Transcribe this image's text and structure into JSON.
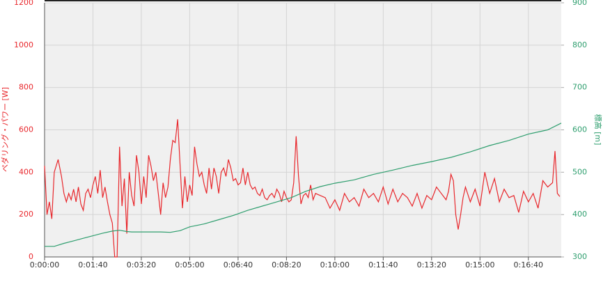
{
  "chart_data": {
    "type": "line",
    "ylabel": "ペダリング・パワー [W]",
    "y2label": "標高 [m]",
    "xlim": [
      0,
      1068
    ],
    "ylim": [
      0,
      1200
    ],
    "y2lim": [
      300,
      900
    ],
    "xticks": [
      {
        "value": 0,
        "label": "0:00:00"
      },
      {
        "value": 100,
        "label": "0:01:40"
      },
      {
        "value": 200,
        "label": "0:03:20"
      },
      {
        "value": 300,
        "label": "0:05:00"
      },
      {
        "value": 400,
        "label": "0:06:40"
      },
      {
        "value": 500,
        "label": "0:08:20"
      },
      {
        "value": 600,
        "label": "0:10:00"
      },
      {
        "value": 700,
        "label": "0:11:40"
      },
      {
        "value": 800,
        "label": "0:13:20"
      },
      {
        "value": 900,
        "label": "0:15:00"
      },
      {
        "value": 1000,
        "label": "0:16:40"
      }
    ],
    "yticks": [
      0,
      200,
      400,
      600,
      800,
      1000,
      1200
    ],
    "y2ticks": [
      300,
      400,
      500,
      600,
      700,
      800,
      900
    ],
    "grid": true,
    "series": [
      {
        "color": "#e8262b",
        "x": [
          0,
          5,
          10,
          15,
          20,
          28,
          35,
          40,
          45,
          50,
          55,
          60,
          65,
          70,
          75,
          80,
          85,
          90,
          95,
          100,
          105,
          110,
          115,
          120,
          125,
          130,
          135,
          140,
          145,
          150,
          155,
          160,
          165,
          170,
          175,
          180,
          185,
          190,
          195,
          200,
          205,
          210,
          215,
          220,
          225,
          230,
          235,
          240,
          245,
          250,
          255,
          260,
          265,
          270,
          275,
          280,
          285,
          290,
          295,
          300,
          305,
          310,
          315,
          320,
          325,
          330,
          335,
          340,
          345,
          350,
          355,
          360,
          365,
          370,
          375,
          380,
          385,
          390,
          395,
          400,
          405,
          410,
          415,
          420,
          425,
          430,
          435,
          440,
          445,
          450,
          455,
          460,
          465,
          470,
          475,
          480,
          485,
          490,
          495,
          500,
          505,
          510,
          515,
          520,
          525,
          530,
          535,
          540,
          545,
          550,
          555,
          560,
          570,
          580,
          590,
          600,
          610,
          620,
          630,
          640,
          650,
          660,
          670,
          680,
          690,
          700,
          710,
          720,
          730,
          740,
          750,
          760,
          770,
          780,
          790,
          800,
          810,
          820,
          830,
          835,
          840,
          845,
          850,
          855,
          860,
          865,
          870,
          880,
          890,
          900,
          910,
          920,
          930,
          940,
          950,
          960,
          970,
          980,
          990,
          1000,
          1010,
          1020,
          1030,
          1040,
          1050,
          1055,
          1060,
          1065
        ],
        "values": [
          430,
          200,
          260,
          180,
          400,
          460,
          380,
          300,
          260,
          300,
          270,
          320,
          260,
          330,
          250,
          220,
          300,
          320,
          280,
          340,
          380,
          300,
          410,
          280,
          330,
          260,
          200,
          160,
          0,
          0,
          520,
          240,
          370,
          110,
          400,
          290,
          240,
          480,
          400,
          250,
          380,
          280,
          480,
          430,
          360,
          400,
          300,
          200,
          350,
          280,
          330,
          460,
          550,
          540,
          650,
          440,
          230,
          380,
          260,
          340,
          290,
          520,
          440,
          380,
          400,
          340,
          300,
          420,
          320,
          420,
          380,
          300,
          400,
          420,
          380,
          460,
          420,
          360,
          370,
          340,
          350,
          420,
          340,
          400,
          340,
          320,
          330,
          300,
          290,
          320,
          280,
          270,
          290,
          300,
          280,
          320,
          300,
          260,
          310,
          280,
          260,
          270,
          350,
          570,
          380,
          250,
          290,
          300,
          280,
          340,
          270,
          300,
          290,
          280,
          230,
          270,
          220,
          300,
          260,
          280,
          240,
          320,
          280,
          300,
          260,
          330,
          250,
          320,
          260,
          300,
          280,
          240,
          300,
          230,
          290,
          270,
          330,
          300,
          270,
          310,
          390,
          360,
          200,
          130,
          200,
          280,
          330,
          260,
          320,
          240,
          400,
          300,
          370,
          260,
          320,
          280,
          290,
          210,
          310,
          260,
          300,
          230,
          360,
          330,
          350,
          500,
          300,
          285
        ]
      },
      {
        "color": "#2e9e6e",
        "axis": "y2",
        "x": [
          0,
          20,
          40,
          60,
          80,
          100,
          120,
          140,
          155,
          170,
          180,
          200,
          240,
          260,
          280,
          300,
          330,
          360,
          390,
          420,
          450,
          480,
          510,
          540,
          570,
          600,
          640,
          680,
          720,
          760,
          800,
          840,
          880,
          920,
          960,
          1000,
          1040,
          1068
        ],
        "values": [
          325,
          325,
          332,
          338,
          344,
          350,
          356,
          361,
          363,
          360,
          359,
          359,
          359,
          358,
          362,
          371,
          378,
          388,
          398,
          410,
          420,
          430,
          440,
          455,
          466,
          474,
          482,
          495,
          505,
          516,
          525,
          535,
          548,
          563,
          575,
          590,
          600,
          616
        ]
      }
    ]
  }
}
